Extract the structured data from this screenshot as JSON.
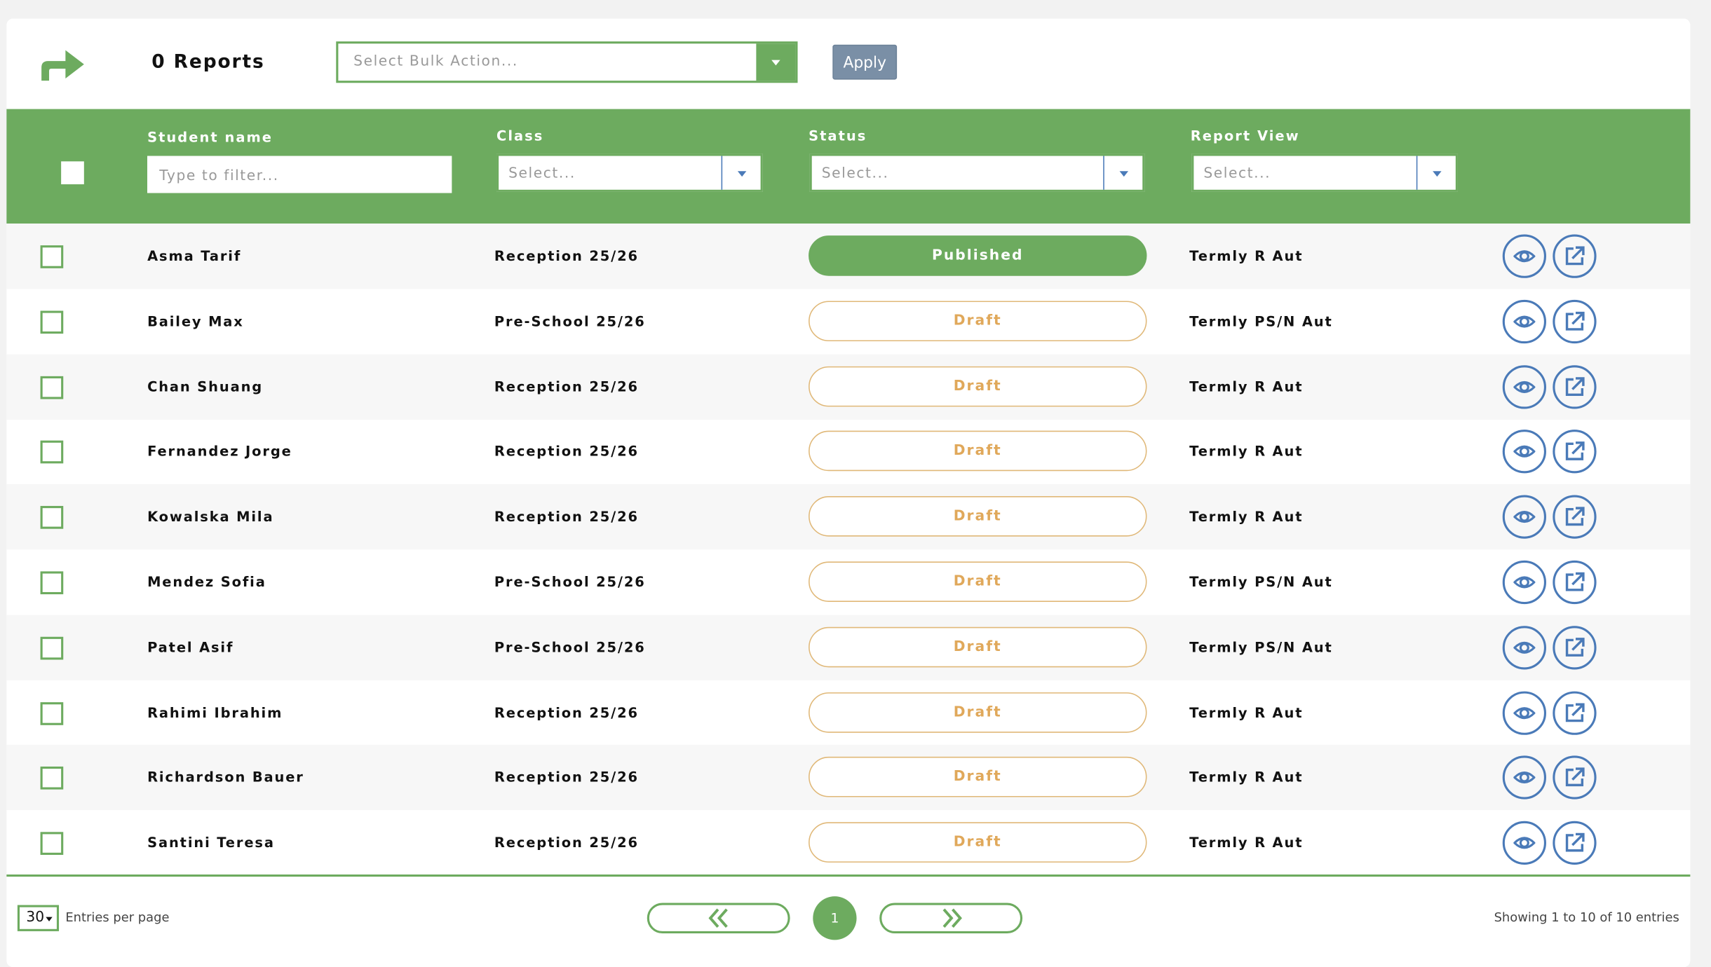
{
  "header": {
    "icon": "share-arrow-icon",
    "title": "0 Reports",
    "bulk_action_placeholder": "Select Bulk Action...",
    "apply_label": "Apply"
  },
  "filters": {
    "student_name": {
      "label": "Student name",
      "placeholder": "Type to filter..."
    },
    "class": {
      "label": "Class",
      "placeholder": "Select..."
    },
    "status": {
      "label": "Status",
      "placeholder": "Select..."
    },
    "report_view": {
      "label": "Report View",
      "placeholder": "Select..."
    }
  },
  "rows": [
    {
      "name": "Asma Tarif",
      "class": "Reception 25/26",
      "status": "Published",
      "view": "Termly R Aut"
    },
    {
      "name": "Bailey Max",
      "class": "Pre-School 25/26",
      "status": "Draft",
      "view": "Termly PS/N Aut"
    },
    {
      "name": "Chan Shuang",
      "class": "Reception 25/26",
      "status": "Draft",
      "view": "Termly R Aut"
    },
    {
      "name": "Fernandez Jorge",
      "class": "Reception 25/26",
      "status": "Draft",
      "view": "Termly R Aut"
    },
    {
      "name": "Kowalska Mila",
      "class": "Reception 25/26",
      "status": "Draft",
      "view": "Termly R Aut"
    },
    {
      "name": "Mendez Sofia",
      "class": "Pre-School 25/26",
      "status": "Draft",
      "view": "Termly PS/N Aut"
    },
    {
      "name": "Patel Asif",
      "class": "Pre-School 25/26",
      "status": "Draft",
      "view": "Termly PS/N Aut"
    },
    {
      "name": "Rahimi Ibrahim",
      "class": "Reception 25/26",
      "status": "Draft",
      "view": "Termly R Aut"
    },
    {
      "name": "Richardson Bauer",
      "class": "Reception 25/26",
      "status": "Draft",
      "view": "Termly R Aut"
    },
    {
      "name": "Santini Teresa",
      "class": "Reception 25/26",
      "status": "Draft",
      "view": "Termly R Aut"
    }
  ],
  "footer": {
    "per_page": "30",
    "per_page_label": "Entries per page",
    "current_page": "1",
    "summary": "Showing 1 to 10 of 10 entries"
  },
  "colors": {
    "primary_green": "#6dab5f",
    "draft": "#e0a85a",
    "icon_blue": "#4a7ab8",
    "apply": "#7a8fa6"
  }
}
